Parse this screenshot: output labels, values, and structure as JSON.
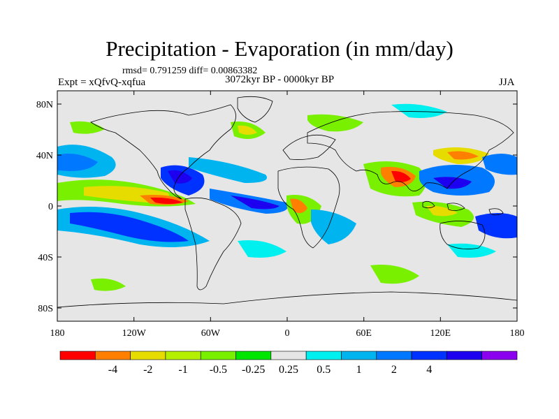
{
  "title": "Precipitation - Evaporation (in mm/day)",
  "stats": "rmsd= 0.791259 diff= 0.00863382",
  "expt": "Expt = xQfvQ-xqfua",
  "period": "3072kyr BP - 0000kyr BP",
  "season": "JJA",
  "lon_ticks": [
    "180",
    "120W",
    "60W",
    "0",
    "60E",
    "120E",
    "180"
  ],
  "lat_ticks": [
    "80N",
    "40N",
    "0",
    "40S",
    "80S"
  ],
  "colorbar": {
    "colors": [
      "#ff0000",
      "#ff8000",
      "#e6dc00",
      "#b4f000",
      "#78f000",
      "#00e600",
      "#e6e6e6",
      "#00f0f0",
      "#00b4f0",
      "#0078ff",
      "#0032ff",
      "#1e00f0",
      "#8c00f0"
    ],
    "labels": [
      "-4",
      "-2",
      "-1",
      "-0.5",
      "-0.25",
      "0.25",
      "0.5",
      "1",
      "2",
      "4"
    ]
  }
}
